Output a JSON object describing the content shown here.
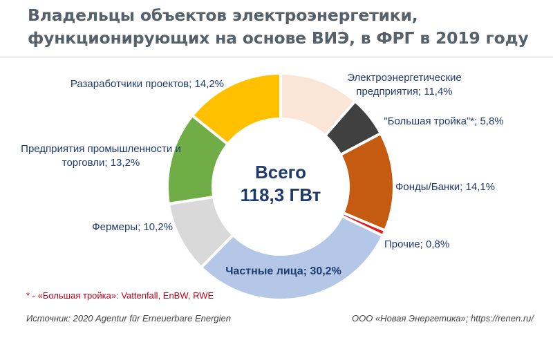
{
  "title_line1": "Владельцы объектов электроэнергетики,",
  "title_line2": "функционирующих на основе ВИЭ, в ФРГ в 2019 году",
  "center_line1": "Всего",
  "center_line2": "118,3 ГВт",
  "footnote": "* - «Большая тройка»: Vattenfall, EnBW, RWE",
  "source_left": "Источник: 2020 Agentur für Erneuerbare Energien",
  "source_right": "ООО «Новая Энергетика»; https://renen.ru/",
  "chart_data": {
    "type": "pie",
    "donut": true,
    "slices": [
      {
        "label_lines": [
          "Электроэнергетические",
          "предприятия; 11,4%"
        ],
        "value": 11.4,
        "color": "#fbe5d6"
      },
      {
        "label_lines": [
          "\"Большая тройка\"*; 5,8%"
        ],
        "value": 5.8,
        "color": "#404040"
      },
      {
        "label_lines": [
          "Фонды/Банки; 14,1%"
        ],
        "value": 14.1,
        "color": "#c55a11"
      },
      {
        "label_lines": [
          "Прочие; 0,8%"
        ],
        "value": 0.8,
        "color": "#e31a1c"
      },
      {
        "label_lines": [
          "Частные лица; 30,2%"
        ],
        "value": 30.2,
        "color": "#b4c7e7"
      },
      {
        "label_lines": [
          "Фермеры; 10,2%"
        ],
        "value": 10.2,
        "color": "#d9d9d9"
      },
      {
        "label_lines": [
          "Предприятия промышленности и",
          "торговли; 13,2%"
        ],
        "value": 13.2,
        "color": "#70ad47"
      },
      {
        "label_lines": [
          "Разаработчики проектов; 14,2%"
        ],
        "value": 14.2,
        "color": "#ffc000"
      }
    ]
  }
}
